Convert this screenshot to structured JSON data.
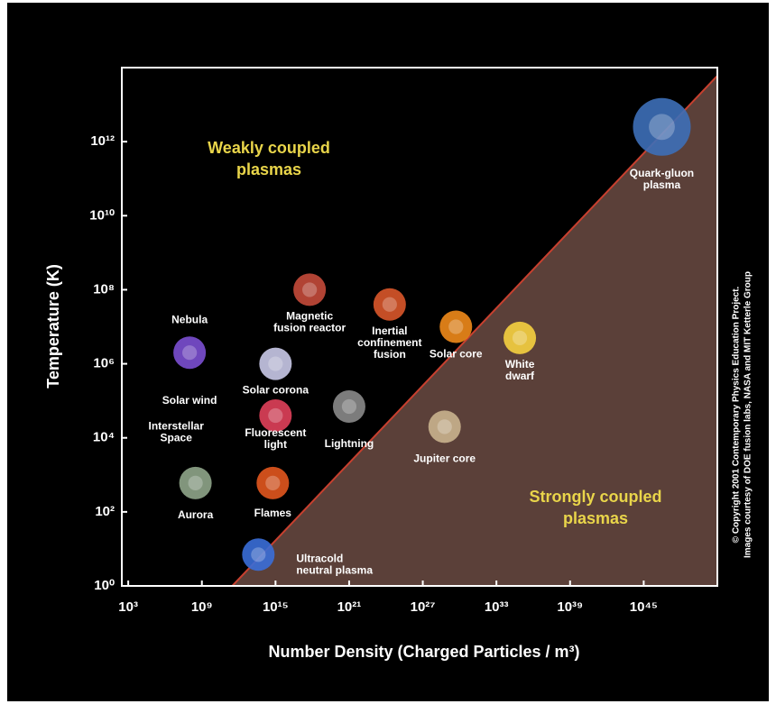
{
  "chart_data": {
    "type": "scatter",
    "log_x": true,
    "log_y": true,
    "xlabel": "Number Density (Charged Particles / m³)",
    "ylabel": "Temperature (K)",
    "xlim": [
      300,
      1e+51
    ],
    "ylim": [
      1,
      100000000000000.0
    ],
    "xticks": [
      {
        "value": 1000.0,
        "label": "10³"
      },
      {
        "value": 1000000000.0,
        "label": "10⁹"
      },
      {
        "value": 1000000000000000.0,
        "label": "10¹⁵"
      },
      {
        "value": 1e+21,
        "label": "10²¹"
      },
      {
        "value": 1e+27,
        "label": "10²⁷"
      },
      {
        "value": 1e+33,
        "label": "10³³"
      },
      {
        "value": 1e+39,
        "label": "10³⁹"
      },
      {
        "value": 1e+45,
        "label": "10⁴⁵"
      }
    ],
    "yticks": [
      {
        "value": 1,
        "label": "10⁰"
      },
      {
        "value": 100,
        "label": "10²"
      },
      {
        "value": 10000.0,
        "label": "10⁴"
      },
      {
        "value": 1000000.0,
        "label": "10⁶"
      },
      {
        "value": 100000000.0,
        "label": "10⁸"
      },
      {
        "value": 10000000000.0,
        "label": "10¹⁰"
      },
      {
        "value": 1000000000000.0,
        "label": "10¹²"
      }
    ],
    "boundary": {
      "color": "#c8402f",
      "fill": "#5b4039",
      "x": [
        300000000000.0,
        1e+51
      ],
      "y": [
        1,
        60000000000000.0
      ]
    },
    "points": [
      {
        "label": [
          "Nebula"
        ],
        "x": 100000000.0,
        "y": 2000000.0,
        "color": "#7b4fd1"
      },
      {
        "label": [
          "Solar wind"
        ],
        "x": 100000000.0,
        "y": 100000.0
      },
      {
        "label": [
          "Interstellar",
          "Space"
        ],
        "x": 8000000.0,
        "y": 20000.0
      },
      {
        "label": [
          "Aurora"
        ],
        "x": 300000000.0,
        "y": 600,
        "color": "#8fa58a"
      },
      {
        "label": [
          "Solar corona"
        ],
        "x": 1000000000000000.0,
        "y": 1000000.0,
        "color": "#c9c9e8"
      },
      {
        "label": [
          "Fluorescent",
          "light"
        ],
        "x": 1000000000000000.0,
        "y": 40000.0,
        "color": "#e0405a"
      },
      {
        "label": [
          "Flames"
        ],
        "x": 600000000000000.0,
        "y": 600,
        "color": "#e2571e"
      },
      {
        "label": [
          "Ultracold",
          "neutral plasma"
        ],
        "x": 40000000000000.0,
        "y": 7,
        "color": "#3a6ed8"
      },
      {
        "label": [
          "Magnetic",
          "fusion reactor"
        ],
        "x": 6e+17,
        "y": 100000000.0,
        "color": "#c44a3a"
      },
      {
        "label": [
          "Inertial",
          "confinement",
          "fusion"
        ],
        "x": 2e+24,
        "y": 40000000.0,
        "color": "#d9562a"
      },
      {
        "label": [
          "Lightning"
        ],
        "x": 1e+21,
        "y": 70000.0,
        "color": "#8a8a8a"
      },
      {
        "label": [
          "Solar core"
        ],
        "x": 5e+29,
        "y": 10000000.0,
        "color": "#f08a1a"
      },
      {
        "label": [
          "White",
          "dwarf"
        ],
        "x": 8e+34,
        "y": 5000000.0,
        "color": "#f5d040"
      },
      {
        "label": [
          "Jupiter core"
        ],
        "x": 6e+28,
        "y": 20000.0,
        "color": "#c9b38e"
      },
      {
        "label": [
          "Quark-gluon",
          "plasma"
        ],
        "x": 3e+46,
        "y": 2500000000000.0,
        "color": "#3d6fb8"
      }
    ],
    "annotations": [
      [
        "Weakly coupled",
        "plasmas"
      ],
      [
        "Strongly coupled",
        "plasmas"
      ]
    ],
    "credit": [
      "© Copyright 2001 Contemporary Physics Education Project.",
      "Images courtesy of DOE fusion labs, NASA and MIT Ketterle Group"
    ]
  }
}
